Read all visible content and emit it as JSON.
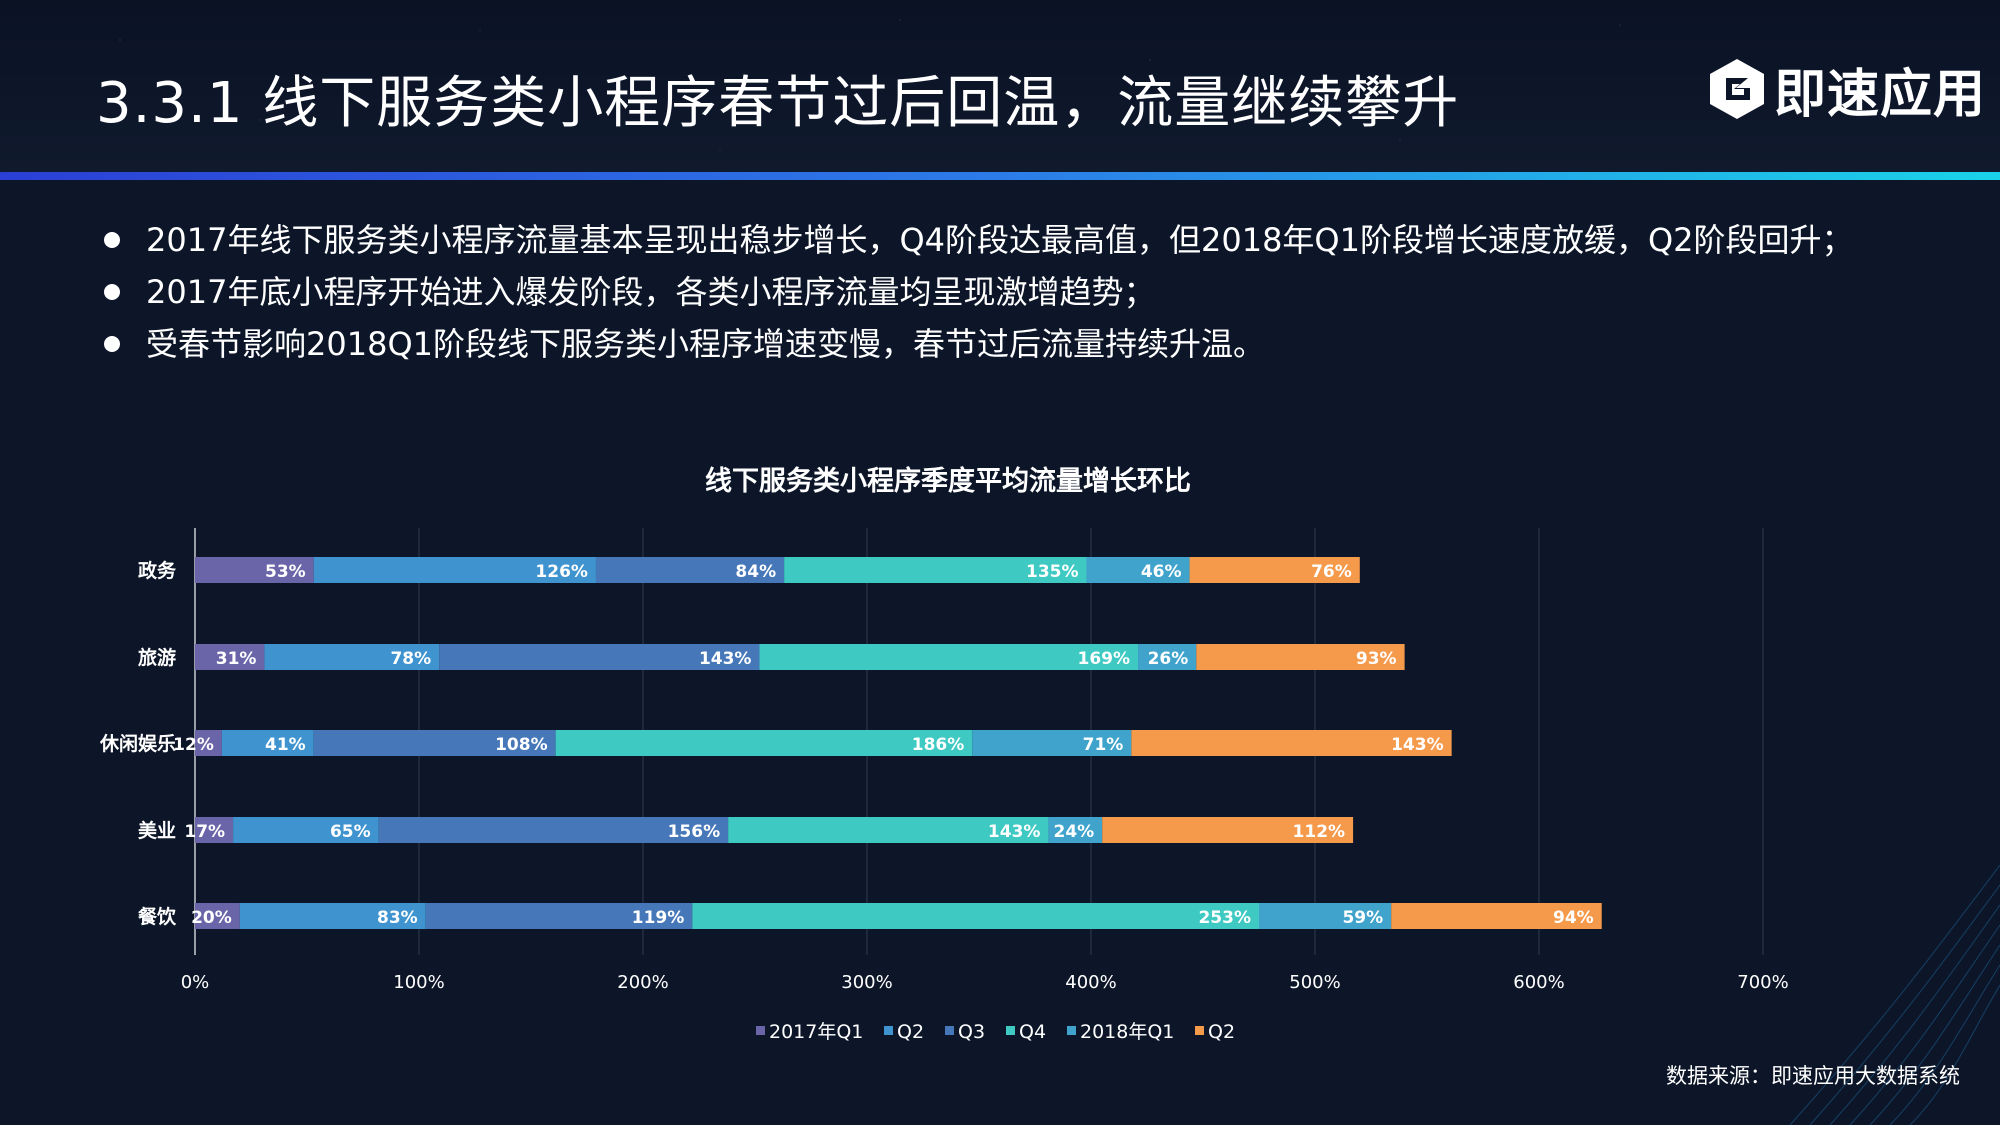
{
  "header": {
    "title": "3.3.1  线下服务类小程序春节过后回温，流量继续攀升",
    "logo_text": "即速应用",
    "logo_icon": "hexagon-e-logo-icon"
  },
  "bullets": [
    "2017年线下服务类小程序流量基本呈现出稳步增长，Q4阶段达最高值，但2018年Q1阶段增长速度放缓，Q2阶段回升；",
    "2017年底小程序开始进入爆发阶段，各类小程序流量均呈现激增趋势；",
    "受春节影响2018Q1阶段线下服务类小程序增速变慢，春节过后流量持续升温。"
  ],
  "chart_data": {
    "type": "bar",
    "orientation": "horizontal",
    "stacked": true,
    "title": "线下服务类小程序季度平均流量增长环比",
    "categories": [
      "政务",
      "旅游",
      "休闲娱乐",
      "美业",
      "餐饮"
    ],
    "series": [
      {
        "name": "2017年Q1",
        "color": "#6a64a8",
        "values": [
          53,
          31,
          12,
          17,
          20
        ]
      },
      {
        "name": "Q2",
        "color": "#3f93cf",
        "values": [
          126,
          78,
          41,
          65,
          83
        ]
      },
      {
        "name": "Q3",
        "color": "#4677b8",
        "values": [
          84,
          143,
          108,
          156,
          119
        ]
      },
      {
        "name": "Q4",
        "color": "#3ec9c2",
        "values": [
          135,
          169,
          186,
          143,
          253
        ]
      },
      {
        "name": "2018年Q1",
        "color": "#3fa3cc",
        "values": [
          46,
          26,
          71,
          24,
          59
        ]
      },
      {
        "name": "Q2",
        "color": "#f5994a",
        "values": [
          76,
          93,
          143,
          112,
          94
        ]
      }
    ],
    "data_labels": [
      [
        "53%",
        "126%",
        "84%",
        "135%",
        "46%",
        "76%"
      ],
      [
        "31%",
        "78%",
        "143%",
        "169%",
        "26%",
        "93%"
      ],
      [
        "12%",
        "41%",
        "108%",
        "186%",
        "71%",
        "143%"
      ],
      [
        "17%",
        "65%",
        "156%",
        "143%",
        "24%",
        "112%"
      ],
      [
        "20%",
        "83%",
        "119%",
        "253%",
        "59%",
        "94%"
      ]
    ],
    "xlim": [
      0,
      700
    ],
    "xticks": [
      0,
      100,
      200,
      300,
      400,
      500,
      600,
      700
    ],
    "xtick_labels": [
      "0%",
      "100%",
      "200%",
      "300%",
      "400%",
      "500%",
      "600%",
      "700%"
    ],
    "grid": true,
    "legend": "bottom"
  },
  "source": "数据来源：即速应用大数据系统"
}
